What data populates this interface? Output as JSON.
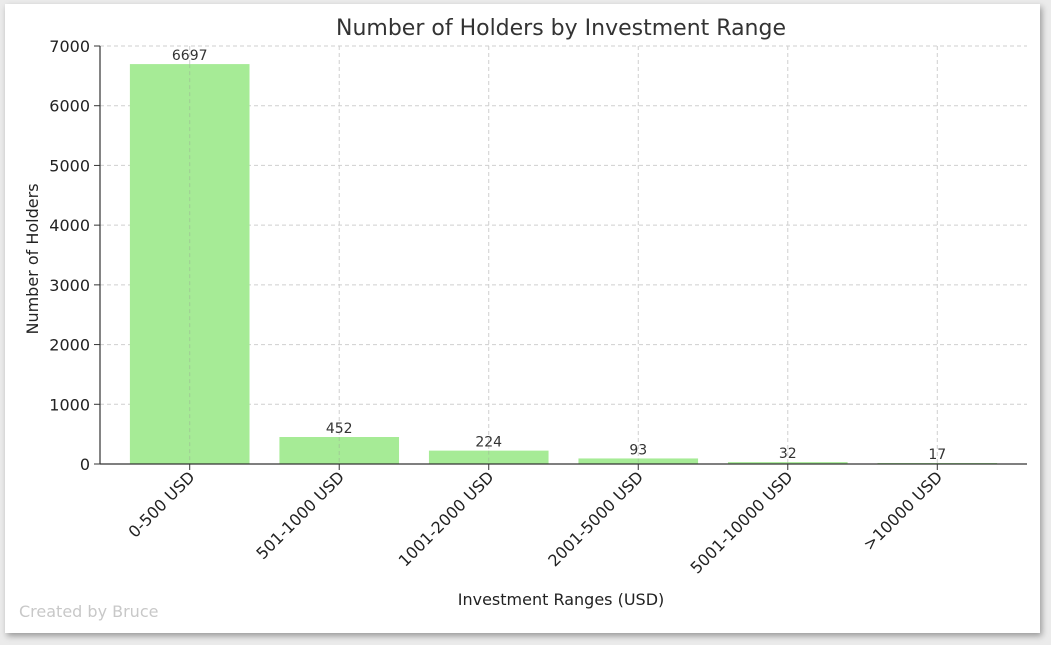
{
  "chart_data": {
    "type": "bar",
    "title": "Number of Holders by Investment Range",
    "xlabel": "Investment Ranges (USD)",
    "ylabel": "Number of Holders",
    "categories": [
      "0-500 USD",
      "501-1000 USD",
      "1001-2000 USD",
      "2001-5000 USD",
      "5001-10000 USD",
      ">10000 USD"
    ],
    "values": [
      6697,
      452,
      224,
      93,
      32,
      17
    ],
    "data_labels": [
      "6697",
      "452",
      "224",
      "93",
      "32",
      "17"
    ],
    "ylim": [
      0,
      7000
    ],
    "yticks": [
      0,
      1000,
      2000,
      3000,
      4000,
      5000,
      6000,
      7000
    ],
    "ytick_labels": [
      "0",
      "1000",
      "2000",
      "3000",
      "4000",
      "5000",
      "6000",
      "7000"
    ],
    "grid": true,
    "bar_color": "#a6eb96",
    "watermark": "Created by Bruce"
  }
}
